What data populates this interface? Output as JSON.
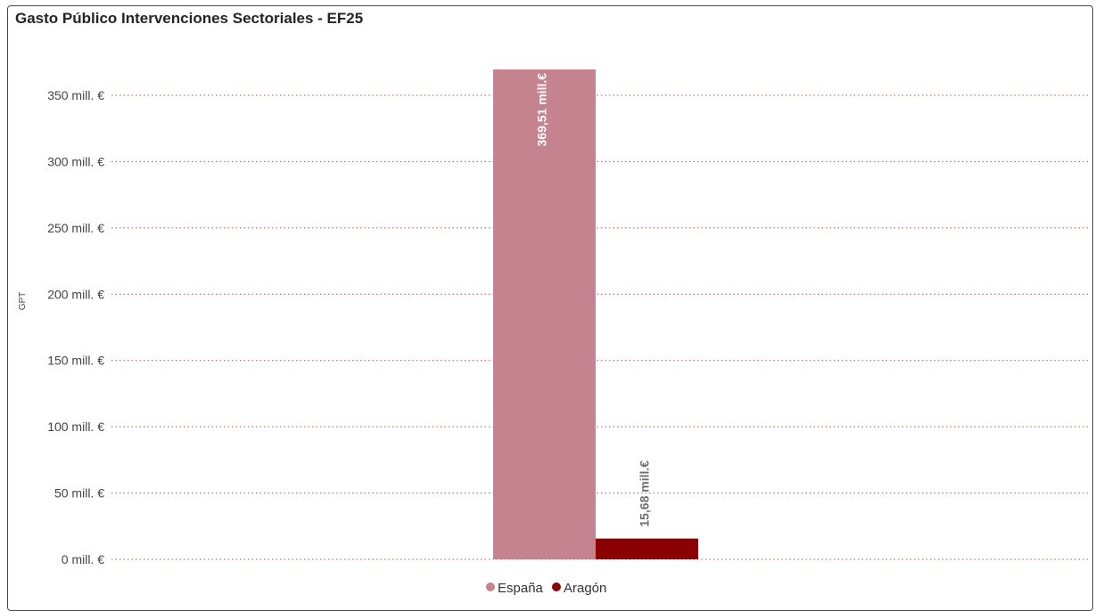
{
  "chart_data": {
    "type": "bar",
    "title": "Gasto Público Intervenciones Sectoriales - EF25",
    "ylabel": "GPT",
    "xlabel": "",
    "ylim": [
      0,
      370
    ],
    "yticks": [
      0,
      50,
      100,
      150,
      200,
      250,
      300,
      350
    ],
    "ytick_labels": [
      "0 mill. €",
      "50 mill. €",
      "100 mill. €",
      "150 mill. €",
      "200 mill. €",
      "250 mill. €",
      "300 mill. €",
      "350 mill. €"
    ],
    "grid": true,
    "legend_position": "bottom-center",
    "series": [
      {
        "name": "España",
        "values": [
          369.51
        ],
        "label": "369,51 mill.€",
        "color": "#c4838e",
        "label_color": "#ffffff"
      },
      {
        "name": "Aragón",
        "values": [
          15.68
        ],
        "label": "15,68 mill.€",
        "color": "#8b0000",
        "label_color": "#6f6f6f"
      }
    ],
    "gridline_color": "#c0504d"
  }
}
